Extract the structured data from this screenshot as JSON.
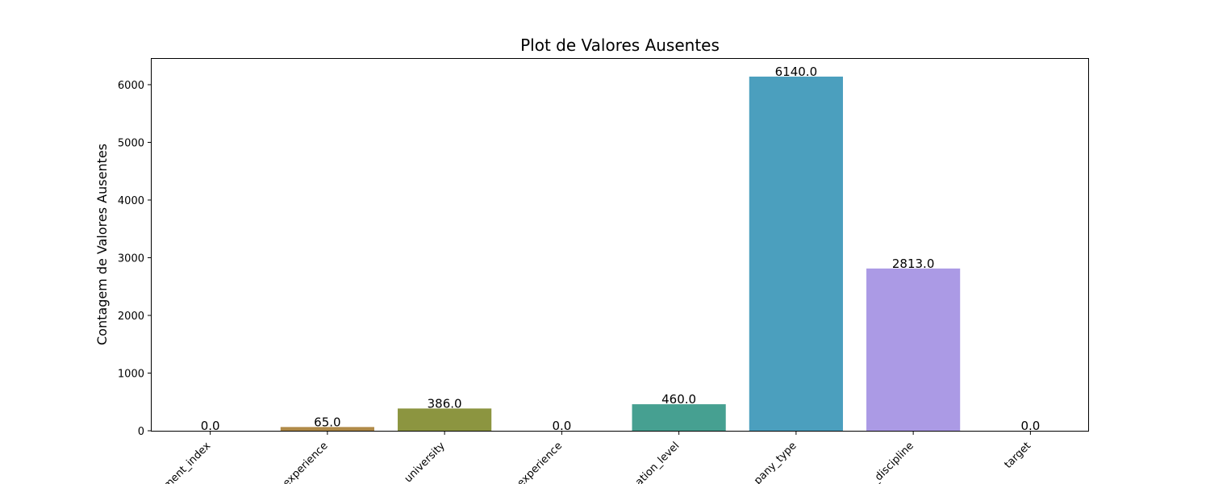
{
  "chart_data": {
    "type": "bar",
    "title": "Plot de Valores Ausentes",
    "xlabel": "",
    "ylabel": "Contagem de Valores Ausentes",
    "categories": [
      "ment_index",
      "experience",
      "_university",
      "experience",
      "ation_level",
      "pany_type",
      "_discipline",
      "target"
    ],
    "values": [
      0.0,
      65.0,
      386.0,
      0.0,
      460.0,
      6140.0,
      2813.0,
      0.0
    ],
    "value_labels": [
      "0.0",
      "65.0",
      "386.0",
      "0.0",
      "460.0",
      "6140.0",
      "2813.0",
      "0.0"
    ],
    "colors": [
      "#c1825b",
      "#b08a48",
      "#8c9540",
      "#5fa24d",
      "#46a091",
      "#4b9fbe",
      "#ab9ae5",
      "#e089d7"
    ],
    "ylim": [
      0,
      6447
    ],
    "yticks": [
      0,
      1000,
      2000,
      3000,
      4000,
      5000,
      6000
    ],
    "ytick_labels": [
      "0",
      "1000",
      "2000",
      "3000",
      "4000",
      "5000",
      "6000"
    ],
    "grid": false,
    "legend": "none"
  }
}
